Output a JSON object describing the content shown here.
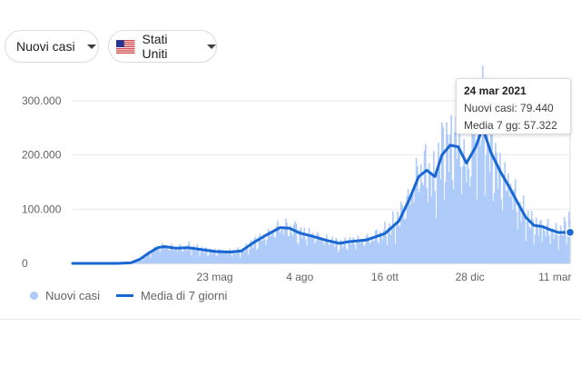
{
  "controls": {
    "metric_label": "Nuovi casi",
    "region_label": "Stati Uniti",
    "region_flag": "us-flag-icon"
  },
  "tooltip": {
    "date": "24 mar 2021",
    "new_cases_text": "Nuovi casi: 79.440",
    "avg_text": "Media 7 gg: 57.322"
  },
  "legend": {
    "bars_label": "Nuovi casi",
    "line_label": "Media di 7 giorni"
  },
  "colors": {
    "bars": "#aecbfa",
    "line": "#1967d2"
  },
  "chart_data": {
    "type": "bar",
    "title": "",
    "xlabel": "",
    "ylabel": "",
    "ylim": [
      0,
      300000
    ],
    "yticks": [
      0,
      100000,
      200000,
      300000
    ],
    "ytick_labels": [
      "0",
      "100.000",
      "200.000",
      "300.000"
    ],
    "xticks": [
      "23 mag",
      "4 ago",
      "16 ott",
      "28 dic",
      "11 mar"
    ],
    "x_range": [
      "2020-01-22",
      "2021-03-24"
    ],
    "legend_position": "bottom-left",
    "grid": true,
    "series": [
      {
        "name": "Nuovi casi",
        "type": "bar",
        "points": [
          [
            "2020-01-22",
            0
          ],
          [
            "2020-02-29",
            0
          ],
          [
            "2020-03-12",
            500
          ],
          [
            "2020-03-20",
            6000
          ],
          [
            "2020-03-28",
            18000
          ],
          [
            "2020-04-03",
            28000
          ],
          [
            "2020-04-10",
            32000
          ],
          [
            "2020-04-20",
            28000
          ],
          [
            "2020-05-01",
            30000
          ],
          [
            "2020-05-12",
            25000
          ],
          [
            "2020-05-23",
            22000
          ],
          [
            "2020-06-05",
            21000
          ],
          [
            "2020-06-15",
            22000
          ],
          [
            "2020-06-25",
            38000
          ],
          [
            "2020-07-06",
            50000
          ],
          [
            "2020-07-18",
            68000
          ],
          [
            "2020-07-26",
            66000
          ],
          [
            "2020-08-04",
            56000
          ],
          [
            "2020-08-15",
            52000
          ],
          [
            "2020-08-26",
            44000
          ],
          [
            "2020-09-07",
            36000
          ],
          [
            "2020-09-15",
            40000
          ],
          [
            "2020-09-30",
            43000
          ],
          [
            "2020-10-16",
            58000
          ],
          [
            "2020-10-28",
            80000
          ],
          [
            "2020-11-06",
            120000
          ],
          [
            "2020-11-14",
            170000
          ],
          [
            "2020-11-21",
            178000
          ],
          [
            "2020-11-28",
            150000
          ],
          [
            "2020-12-04",
            210000
          ],
          [
            "2020-12-11",
            220000
          ],
          [
            "2020-12-18",
            225000
          ],
          [
            "2020-12-25",
            170000
          ],
          [
            "2021-01-02",
            230000
          ],
          [
            "2021-01-08",
            275000
          ],
          [
            "2021-01-15",
            210000
          ],
          [
            "2021-01-23",
            165000
          ],
          [
            "2021-01-31",
            140000
          ],
          [
            "2021-02-07",
            110000
          ],
          [
            "2021-02-14",
            85000
          ],
          [
            "2021-02-21",
            70000
          ],
          [
            "2021-02-28",
            65000
          ],
          [
            "2021-03-07",
            62000
          ],
          [
            "2021-03-14",
            52000
          ],
          [
            "2021-03-24",
            79440
          ]
        ]
      },
      {
        "name": "Media di 7 giorni",
        "type": "line",
        "points": [
          [
            "2020-01-22",
            0
          ],
          [
            "2020-02-29",
            0
          ],
          [
            "2020-03-12",
            1000
          ],
          [
            "2020-03-20",
            8000
          ],
          [
            "2020-03-28",
            20000
          ],
          [
            "2020-04-04",
            29000
          ],
          [
            "2020-04-10",
            31000
          ],
          [
            "2020-04-20",
            28000
          ],
          [
            "2020-04-30",
            29000
          ],
          [
            "2020-05-10",
            26000
          ],
          [
            "2020-05-23",
            22000
          ],
          [
            "2020-06-05",
            21000
          ],
          [
            "2020-06-15",
            23000
          ],
          [
            "2020-06-25",
            38000
          ],
          [
            "2020-07-06",
            52000
          ],
          [
            "2020-07-18",
            66000
          ],
          [
            "2020-07-26",
            65000
          ],
          [
            "2020-08-04",
            56000
          ],
          [
            "2020-08-15",
            50000
          ],
          [
            "2020-08-26",
            43000
          ],
          [
            "2020-09-07",
            37000
          ],
          [
            "2020-09-15",
            40000
          ],
          [
            "2020-09-30",
            43000
          ],
          [
            "2020-10-16",
            55000
          ],
          [
            "2020-10-28",
            78000
          ],
          [
            "2020-11-06",
            118000
          ],
          [
            "2020-11-14",
            160000
          ],
          [
            "2020-11-21",
            172000
          ],
          [
            "2020-11-28",
            160000
          ],
          [
            "2020-12-04",
            200000
          ],
          [
            "2020-12-11",
            218000
          ],
          [
            "2020-12-18",
            215000
          ],
          [
            "2020-12-25",
            185000
          ],
          [
            "2021-01-02",
            215000
          ],
          [
            "2021-01-08",
            250000
          ],
          [
            "2021-01-15",
            205000
          ],
          [
            "2021-01-23",
            170000
          ],
          [
            "2021-01-31",
            140000
          ],
          [
            "2021-02-07",
            112000
          ],
          [
            "2021-02-14",
            85000
          ],
          [
            "2021-02-21",
            70000
          ],
          [
            "2021-02-28",
            68000
          ],
          [
            "2021-03-07",
            62000
          ],
          [
            "2021-03-14",
            57000
          ],
          [
            "2021-03-24",
            57322
          ]
        ]
      }
    ]
  }
}
